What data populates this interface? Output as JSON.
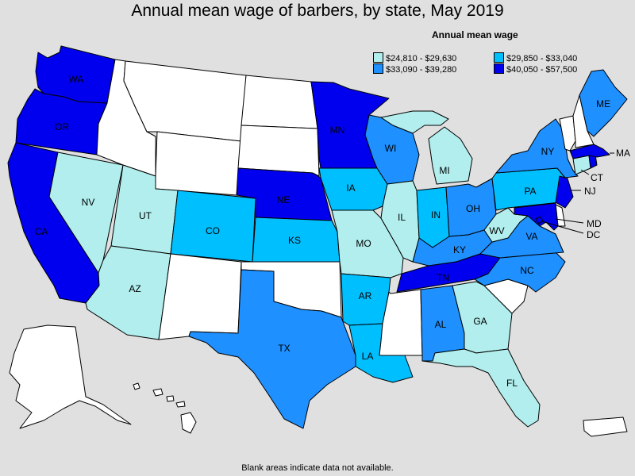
{
  "title": "Annual mean wage of barbers, by state, May 2019",
  "legend": {
    "title": "Annual mean wage",
    "items": [
      {
        "label": "$24,810 - $29,630",
        "color": "#b2eeee"
      },
      {
        "label": "$29,850 - $33,040",
        "color": "#00bfff"
      },
      {
        "label": "$33,090 - $39,280",
        "color": "#1e90ff"
      },
      {
        "label": "$40,050 - $57,500",
        "color": "#0000ee"
      }
    ]
  },
  "no_data_color": "#ffffff",
  "footer": "Blank areas indicate data not available.",
  "states": [
    {
      "code": "WA",
      "tier": 4
    },
    {
      "code": "OR",
      "tier": 4
    },
    {
      "code": "CA",
      "tier": 4
    },
    {
      "code": "NV",
      "tier": 1
    },
    {
      "code": "ID",
      "tier": 0
    },
    {
      "code": "MT",
      "tier": 0
    },
    {
      "code": "WY",
      "tier": 0
    },
    {
      "code": "UT",
      "tier": 1
    },
    {
      "code": "AZ",
      "tier": 1
    },
    {
      "code": "CO",
      "tier": 2
    },
    {
      "code": "NM",
      "tier": 0
    },
    {
      "code": "ND",
      "tier": 0
    },
    {
      "code": "SD",
      "tier": 0
    },
    {
      "code": "NE",
      "tier": 4
    },
    {
      "code": "KS",
      "tier": 2
    },
    {
      "code": "OK",
      "tier": 0
    },
    {
      "code": "TX",
      "tier": 3
    },
    {
      "code": "MN",
      "tier": 4
    },
    {
      "code": "IA",
      "tier": 2
    },
    {
      "code": "MO",
      "tier": 1
    },
    {
      "code": "AR",
      "tier": 2
    },
    {
      "code": "LA",
      "tier": 2
    },
    {
      "code": "WI",
      "tier": 3
    },
    {
      "code": "IL",
      "tier": 1
    },
    {
      "code": "MI",
      "tier": 1
    },
    {
      "code": "IN",
      "tier": 2
    },
    {
      "code": "OH",
      "tier": 3
    },
    {
      "code": "KY",
      "tier": 3
    },
    {
      "code": "TN",
      "tier": 4
    },
    {
      "code": "MS",
      "tier": 0
    },
    {
      "code": "AL",
      "tier": 3
    },
    {
      "code": "GA",
      "tier": 1
    },
    {
      "code": "FL",
      "tier": 1
    },
    {
      "code": "SC",
      "tier": 0
    },
    {
      "code": "NC",
      "tier": 3
    },
    {
      "code": "VA",
      "tier": 3
    },
    {
      "code": "WV",
      "tier": 1
    },
    {
      "code": "PA",
      "tier": 2
    },
    {
      "code": "NY",
      "tier": 3
    },
    {
      "code": "NJ",
      "tier": 4
    },
    {
      "code": "DE",
      "tier": 0
    },
    {
      "code": "MD",
      "tier": 4
    },
    {
      "code": "DC",
      "tier": 4
    },
    {
      "code": "CT",
      "tier": 1
    },
    {
      "code": "RI",
      "tier": 4
    },
    {
      "code": "MA",
      "tier": 4
    },
    {
      "code": "VT",
      "tier": 0
    },
    {
      "code": "NH",
      "tier": 0
    },
    {
      "code": "ME",
      "tier": 3
    },
    {
      "code": "AK",
      "tier": 0
    },
    {
      "code": "HI",
      "tier": 0
    },
    {
      "code": "PR",
      "tier": 0
    }
  ]
}
